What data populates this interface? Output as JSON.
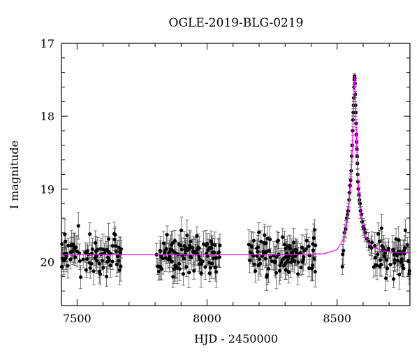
{
  "chart_data": {
    "type": "scatter",
    "title": "OGLE-2019-BLG-0219",
    "xlabel": "HJD - 2450000",
    "ylabel": "I magnitude",
    "xlim": [
      7440,
      8780
    ],
    "ylim": [
      20.6,
      17.0
    ],
    "y_inverted": true,
    "x_ticks": [
      7500,
      8000,
      8500
    ],
    "y_ticks": [
      17,
      18,
      19,
      20
    ],
    "x_minor_step": 100,
    "y_minor_step": 0.2,
    "grid": false,
    "legend": "none",
    "colors": {
      "points": "#000000",
      "model": "#ff00ff"
    },
    "seasons": [
      {
        "start": 7440,
        "end": 7670,
        "mean": 19.9,
        "spread": 0.17
      },
      {
        "start": 7805,
        "end": 8050,
        "mean": 19.9,
        "spread": 0.15
      },
      {
        "start": 8160,
        "end": 8420,
        "mean": 19.9,
        "spread": 0.15
      },
      {
        "start": 8520,
        "end": 8780,
        "mean": 19.9,
        "spread": 0.15
      }
    ],
    "series": [
      {
        "kind": "model",
        "baseline": 19.9,
        "peak_time": 8567,
        "peak_mag": 17.45,
        "points": [
          [
            7440,
            19.9
          ],
          [
            8300,
            19.9
          ],
          [
            8450,
            19.89
          ],
          [
            8500,
            19.83
          ],
          [
            8520,
            19.72
          ],
          [
            8535,
            19.52
          ],
          [
            8545,
            19.25
          ],
          [
            8553,
            18.9
          ],
          [
            8558,
            18.5
          ],
          [
            8562,
            18.05
          ],
          [
            8565,
            17.65
          ],
          [
            8567,
            17.45
          ],
          [
            8569,
            17.62
          ],
          [
            8572,
            18.0
          ],
          [
            8576,
            18.45
          ],
          [
            8580,
            18.85
          ],
          [
            8586,
            19.2
          ],
          [
            8594,
            19.45
          ],
          [
            8605,
            19.62
          ],
          [
            8620,
            19.74
          ],
          [
            8640,
            19.8
          ],
          [
            8680,
            19.85
          ],
          [
            8720,
            19.87
          ],
          [
            8780,
            19.88
          ]
        ]
      },
      {
        "kind": "event-points",
        "points": [
          [
            8528,
            19.6
          ],
          [
            8533,
            19.55
          ],
          [
            8537,
            19.4
          ],
          [
            8540,
            19.35
          ],
          [
            8543,
            19.3
          ],
          [
            8546,
            19.15
          ],
          [
            8548,
            19.05
          ],
          [
            8550,
            18.95
          ],
          [
            8552,
            18.88
          ],
          [
            8554,
            18.75
          ],
          [
            8556,
            18.55
          ],
          [
            8558,
            18.4
          ],
          [
            8560,
            18.2
          ],
          [
            8561,
            18.05
          ],
          [
            8562,
            17.95
          ],
          [
            8563,
            17.85
          ],
          [
            8564,
            17.75
          ],
          [
            8565,
            17.6
          ],
          [
            8566,
            17.5
          ],
          [
            8567,
            17.45
          ],
          [
            8568,
            17.48
          ],
          [
            8569,
            17.55
          ],
          [
            8570,
            17.7
          ],
          [
            8571,
            17.85
          ],
          [
            8572,
            17.95
          ],
          [
            8573,
            18.1
          ],
          [
            8574,
            18.25
          ],
          [
            8575,
            18.35
          ],
          [
            8576,
            18.45
          ],
          [
            8577,
            18.55
          ],
          [
            8578,
            18.65
          ],
          [
            8579,
            18.8
          ],
          [
            8580,
            18.9
          ],
          [
            8582,
            19.0
          ],
          [
            8584,
            19.08
          ],
          [
            8586,
            19.15
          ],
          [
            8588,
            19.2
          ],
          [
            8590,
            19.3
          ],
          [
            8593,
            19.35
          ],
          [
            8596,
            19.45
          ],
          [
            8600,
            19.52
          ],
          [
            8604,
            19.55
          ],
          [
            8608,
            19.6
          ],
          [
            8614,
            19.68
          ],
          [
            8620,
            19.72
          ]
        ]
      }
    ]
  }
}
